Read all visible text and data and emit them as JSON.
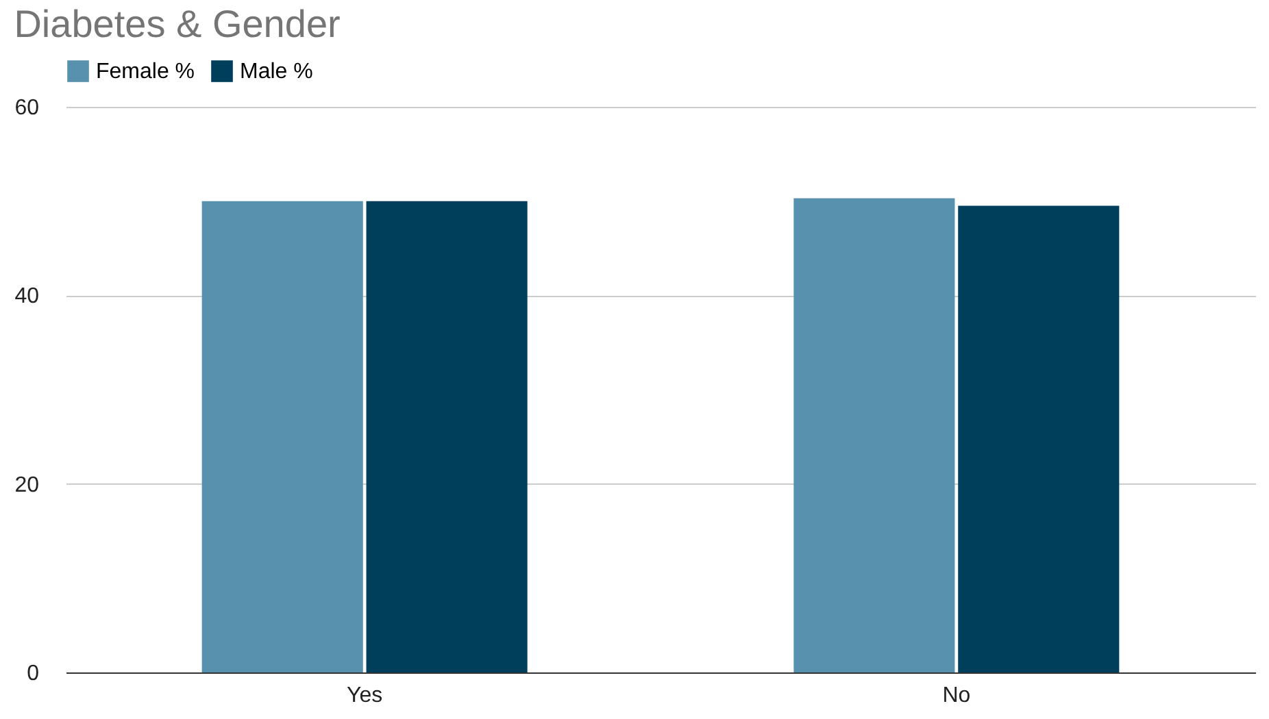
{
  "chart_data": {
    "type": "bar",
    "title": "Diabetes & Gender",
    "categories": [
      "Yes",
      "No"
    ],
    "series": [
      {
        "name": "Female %",
        "color": "#5891ad",
        "values": [
          50.0,
          50.3
        ]
      },
      {
        "name": "Male %",
        "color": "#003f5c",
        "values": [
          50.0,
          49.5
        ]
      }
    ],
    "ylim": [
      0,
      60
    ],
    "yticks": [
      0,
      20,
      40,
      60
    ],
    "grid": "y",
    "legend": "top"
  }
}
